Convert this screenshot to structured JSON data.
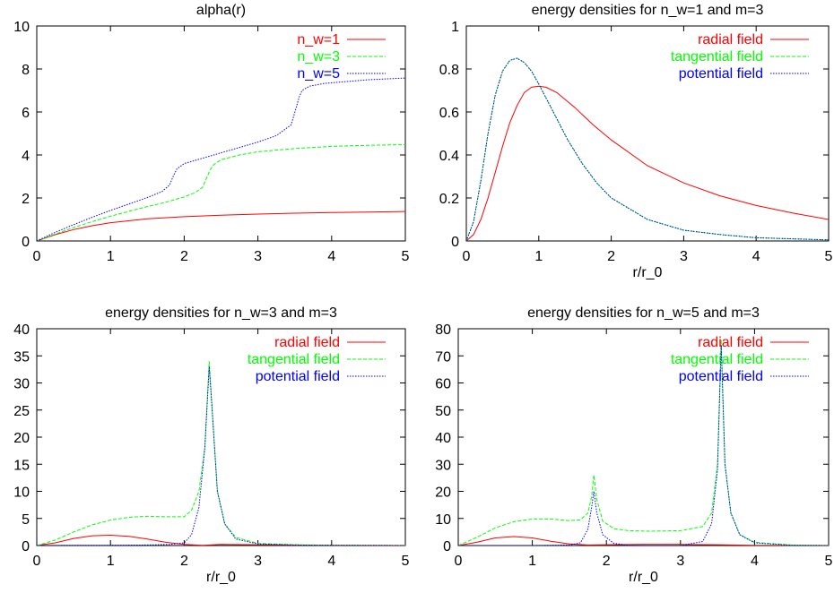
{
  "chart_data": [
    {
      "type": "line",
      "title": "alpha(r)",
      "xlabel": "",
      "ylabel": "",
      "xlim": [
        0,
        5
      ],
      "ylim": [
        0,
        10
      ],
      "xticks": [
        "0",
        "1",
        "2",
        "3",
        "4",
        "5"
      ],
      "yticks": [
        "0",
        "2",
        "4",
        "6",
        "8",
        "10"
      ],
      "grid": false,
      "legend": "top-right",
      "series": [
        {
          "name": "n_w=1",
          "color": "#ff0000",
          "dash": "solid",
          "x": [
            0,
            0.1,
            0.25,
            0.5,
            0.75,
            1,
            1.5,
            2,
            2.5,
            3,
            3.5,
            4,
            4.5,
            5
          ],
          "y": [
            0,
            0.12,
            0.29,
            0.53,
            0.71,
            0.85,
            1.03,
            1.13,
            1.2,
            1.25,
            1.29,
            1.32,
            1.34,
            1.37
          ]
        },
        {
          "name": "n_w=3",
          "color": "#00ff00",
          "dash": "dashed",
          "x": [
            0,
            0.25,
            0.5,
            0.75,
            1,
            1.25,
            1.5,
            1.75,
            2,
            2.15,
            2.25,
            2.3,
            2.35,
            2.4,
            2.5,
            2.75,
            3,
            3.5,
            4,
            4.5,
            5
          ],
          "y": [
            0,
            0.32,
            0.62,
            0.9,
            1.15,
            1.38,
            1.6,
            1.8,
            2.05,
            2.25,
            2.5,
            2.9,
            3.3,
            3.55,
            3.78,
            4.0,
            4.15,
            4.3,
            4.4,
            4.45,
            4.48
          ]
        },
        {
          "name": "n_w=5",
          "color": "#0000ff",
          "dash": "dotted",
          "x": [
            0,
            0.25,
            0.5,
            0.75,
            1,
            1.25,
            1.5,
            1.7,
            1.8,
            1.85,
            1.9,
            2.0,
            2.25,
            2.5,
            2.75,
            3,
            3.25,
            3.45,
            3.52,
            3.56,
            3.6,
            3.7,
            3.9,
            4.25,
            4.5,
            5
          ],
          "y": [
            0,
            0.4,
            0.76,
            1.1,
            1.42,
            1.72,
            2.02,
            2.3,
            2.6,
            3.0,
            3.35,
            3.6,
            3.85,
            4.1,
            4.35,
            4.6,
            4.9,
            5.4,
            6.2,
            6.7,
            7.0,
            7.2,
            7.33,
            7.43,
            7.5,
            7.58
          ]
        }
      ]
    },
    {
      "type": "line",
      "title": "energy densities for n_w=1 and m=3",
      "xlabel": "r/r_0",
      "ylabel": "",
      "xlim": [
        0,
        5
      ],
      "ylim": [
        0,
        1
      ],
      "xticks": [
        "0",
        "1",
        "2",
        "3",
        "4",
        "5"
      ],
      "yticks": [
        "0",
        "0.2",
        "0.4",
        "0.6",
        "0.8",
        "1"
      ],
      "grid": false,
      "legend": "top-right",
      "series": [
        {
          "name": "radial field",
          "color": "#ff0000",
          "dash": "solid",
          "x": [
            0,
            0.1,
            0.2,
            0.3,
            0.4,
            0.5,
            0.6,
            0.7,
            0.8,
            0.9,
            1.0,
            1.1,
            1.25,
            1.5,
            1.75,
            2,
            2.5,
            3,
            3.5,
            4,
            4.5,
            5
          ],
          "y": [
            0,
            0.03,
            0.1,
            0.2,
            0.32,
            0.44,
            0.55,
            0.63,
            0.69,
            0.715,
            0.72,
            0.715,
            0.69,
            0.62,
            0.54,
            0.47,
            0.35,
            0.27,
            0.21,
            0.165,
            0.13,
            0.1
          ]
        },
        {
          "name": "tangential field",
          "color": "#00ff00",
          "dash": "dashed",
          "x": [
            0,
            0.1,
            0.2,
            0.3,
            0.4,
            0.5,
            0.6,
            0.7,
            0.8,
            0.9,
            1.0,
            1.2,
            1.4,
            1.6,
            1.8,
            2,
            2.5,
            3,
            3.5,
            4,
            4.5,
            5
          ],
          "y": [
            0,
            0.09,
            0.28,
            0.5,
            0.68,
            0.79,
            0.84,
            0.85,
            0.83,
            0.79,
            0.73,
            0.6,
            0.47,
            0.36,
            0.27,
            0.2,
            0.1,
            0.05,
            0.03,
            0.015,
            0.01,
            0.005
          ]
        },
        {
          "name": "potential field",
          "color": "#0000ff",
          "dash": "dotted",
          "x": [
            0,
            0.1,
            0.2,
            0.3,
            0.4,
            0.5,
            0.6,
            0.7,
            0.8,
            0.9,
            1.0,
            1.2,
            1.4,
            1.6,
            1.8,
            2,
            2.5,
            3,
            3.5,
            4,
            4.5,
            5
          ],
          "y": [
            0,
            0.09,
            0.28,
            0.5,
            0.68,
            0.79,
            0.84,
            0.85,
            0.83,
            0.79,
            0.73,
            0.6,
            0.47,
            0.36,
            0.27,
            0.2,
            0.1,
            0.05,
            0.03,
            0.015,
            0.01,
            0.005
          ]
        }
      ]
    },
    {
      "type": "line",
      "title": "energy densities for n_w=3 and m=3",
      "xlabel": "r/r_0",
      "ylabel": "",
      "xlim": [
        0,
        5
      ],
      "ylim": [
        0,
        40
      ],
      "xticks": [
        "0",
        "1",
        "2",
        "3",
        "4",
        "5"
      ],
      "yticks": [
        "0",
        "5",
        "10",
        "15",
        "20",
        "25",
        "30",
        "35",
        "40"
      ],
      "grid": false,
      "legend": "top-right",
      "series": [
        {
          "name": "radial field",
          "color": "#ff0000",
          "dash": "solid",
          "x": [
            0,
            0.25,
            0.5,
            0.75,
            1,
            1.25,
            1.5,
            1.75,
            2,
            2.25,
            2.5,
            3,
            4,
            5
          ],
          "y": [
            0,
            0.5,
            1.3,
            1.8,
            1.9,
            1.7,
            1.2,
            0.6,
            0.2,
            0.05,
            0.2,
            0.15,
            0.05,
            0.02
          ]
        },
        {
          "name": "tangential field",
          "color": "#00ff00",
          "dash": "dashed",
          "x": [
            0,
            0.25,
            0.5,
            0.75,
            1,
            1.25,
            1.5,
            1.75,
            2,
            2.1,
            2.2,
            2.28,
            2.34,
            2.38,
            2.45,
            2.55,
            2.7,
            3,
            3.5,
            4,
            5
          ],
          "y": [
            0,
            1.0,
            2.5,
            3.8,
            4.7,
            5.2,
            5.4,
            5.3,
            5.3,
            6.5,
            10,
            18,
            34,
            25,
            10,
            4,
            1.5,
            0.4,
            0.15,
            0.05,
            0
          ]
        },
        {
          "name": "potential field",
          "color": "#0000ff",
          "dash": "dotted",
          "x": [
            0,
            0.5,
            1,
            1.5,
            1.8,
            2,
            2.1,
            2.2,
            2.28,
            2.34,
            2.38,
            2.45,
            2.55,
            2.7,
            3,
            3.5,
            4,
            5
          ],
          "y": [
            0,
            0.05,
            0.05,
            0.1,
            0.2,
            0.5,
            2,
            7,
            18,
            33,
            25,
            10,
            4,
            1.2,
            0.3,
            0.1,
            0.05,
            0
          ]
        }
      ]
    },
    {
      "type": "line",
      "title": "energy densities for n_w=5 and m=3",
      "xlabel": "r/r_0",
      "ylabel": "",
      "xlim": [
        0,
        5
      ],
      "ylim": [
        0,
        80
      ],
      "xticks": [
        "0",
        "1",
        "2",
        "3",
        "4",
        "5"
      ],
      "yticks": [
        "0",
        "10",
        "20",
        "30",
        "40",
        "50",
        "60",
        "70",
        "80"
      ],
      "grid": false,
      "legend": "top-right",
      "series": [
        {
          "name": "radial field",
          "color": "#ff0000",
          "dash": "solid",
          "x": [
            0,
            0.25,
            0.5,
            0.75,
            1,
            1.25,
            1.5,
            1.75,
            2,
            2.5,
            3,
            3.5,
            4,
            5
          ],
          "y": [
            0,
            1.2,
            2.8,
            3.3,
            2.8,
            1.6,
            0.6,
            0.2,
            0.3,
            0.4,
            0.4,
            0.3,
            0.1,
            0.02
          ]
        },
        {
          "name": "tangential field",
          "color": "#00ff00",
          "dash": "dashed",
          "x": [
            0,
            0.25,
            0.5,
            0.75,
            1,
            1.25,
            1.5,
            1.65,
            1.75,
            1.8,
            1.83,
            1.87,
            1.95,
            2.1,
            2.3,
            2.6,
            3,
            3.3,
            3.42,
            3.5,
            3.55,
            3.6,
            3.68,
            3.8,
            4,
            4.5,
            5
          ],
          "y": [
            0,
            3,
            6.5,
            8.8,
            9.8,
            9.8,
            9.2,
            9.5,
            12,
            18,
            26,
            17,
            9,
            6.2,
            5.5,
            5.3,
            5.5,
            7,
            12,
            30,
            76,
            30,
            12,
            4,
            1.2,
            0.2,
            0
          ]
        },
        {
          "name": "potential field",
          "color": "#0000ff",
          "dash": "dotted",
          "x": [
            0,
            1,
            1.5,
            1.65,
            1.75,
            1.8,
            1.83,
            1.87,
            1.95,
            2.1,
            2.3,
            2.6,
            3,
            3.3,
            3.42,
            3.5,
            3.55,
            3.6,
            3.68,
            3.8,
            4,
            4.5,
            5
          ],
          "y": [
            0,
            0,
            0.2,
            1,
            6,
            14,
            20,
            12,
            4,
            0.8,
            0.1,
            0,
            0,
            1.5,
            8,
            28,
            74,
            30,
            12,
            4,
            1,
            0.1,
            0
          ]
        }
      ]
    }
  ]
}
